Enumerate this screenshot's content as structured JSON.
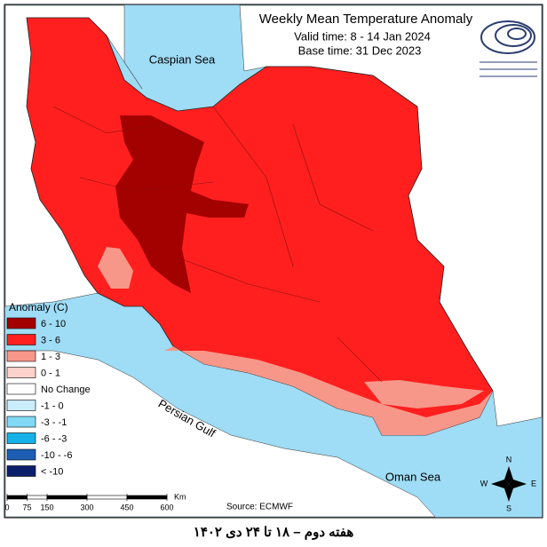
{
  "title": "Weekly Mean Temperature Anomaly",
  "valid_time": "Valid time: 8 - 14 Jan 2024",
  "base_time": "Base time: 31 Dec 2023",
  "labels": {
    "caspian": "Caspian Sea",
    "persian_gulf": "Persian Gulf",
    "oman_sea": "Oman Sea"
  },
  "legend": {
    "title": "Anomaly (C)",
    "items": [
      {
        "label": "6 - 10",
        "color": "#a30000"
      },
      {
        "label": "3 - 6",
        "color": "#ff1f1f"
      },
      {
        "label": "1 - 3",
        "color": "#f7978a"
      },
      {
        "label": "0 - 1",
        "color": "#fcd2ca"
      },
      {
        "label": "No Change",
        "color": "#ffffff"
      },
      {
        "label": "-1 - 0",
        "color": "#c9edfb"
      },
      {
        "label": "-3 - -1",
        "color": "#82d9f6"
      },
      {
        "label": "-6 - -3",
        "color": "#14b2e8"
      },
      {
        "label": "-10 - -6",
        "color": "#1d5db3"
      },
      {
        "label": "< -10",
        "color": "#0b1f6b"
      }
    ]
  },
  "scale_bar": {
    "ticks": [
      0,
      75,
      150,
      300,
      450,
      600
    ],
    "unit": "Km"
  },
  "source": "Source: ECMWF",
  "compass": {
    "n": "N",
    "e": "E",
    "s": "S",
    "w": "W"
  },
  "caption": "هفته دوم – ۱۸ تا ۲۴ دی ۱۴۰۲"
}
